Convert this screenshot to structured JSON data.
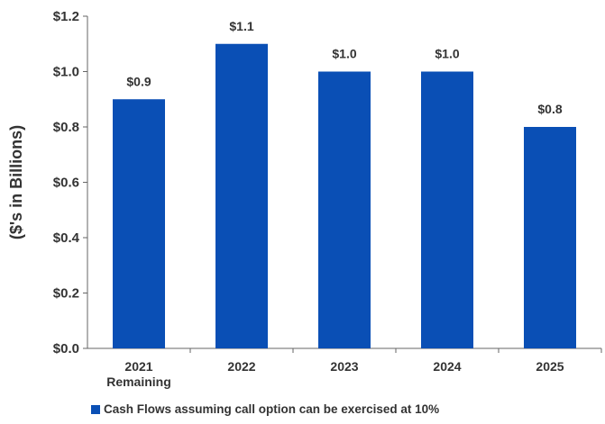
{
  "colors": {
    "bar": "#0A4FB5",
    "axis": "#666666",
    "text": "#333333"
  },
  "chart_data": {
    "type": "bar",
    "categories": [
      [
        "2021",
        "Remaining"
      ],
      [
        "2022"
      ],
      [
        "2023"
      ],
      [
        "2024"
      ],
      [
        "2025"
      ]
    ],
    "series": [
      {
        "name": "Cash Flows assuming call option can be exercised at 10%",
        "values": [
          0.9,
          1.1,
          1.0,
          1.0,
          0.8
        ],
        "labels": [
          "$0.9",
          "$1.1",
          "$1.0",
          "$1.0",
          "$0.8"
        ]
      }
    ],
    "ylabel": "($'s in Billions)",
    "ylim": [
      0,
      1.2
    ],
    "yticks": [
      0.0,
      0.2,
      0.4,
      0.6,
      0.8,
      1.0,
      1.2
    ],
    "ytick_labels": [
      "$0.0",
      "$0.2",
      "$0.4",
      "$0.6",
      "$0.8",
      "$1.0",
      "$1.2"
    ],
    "grid": false,
    "legend": "bottom"
  }
}
